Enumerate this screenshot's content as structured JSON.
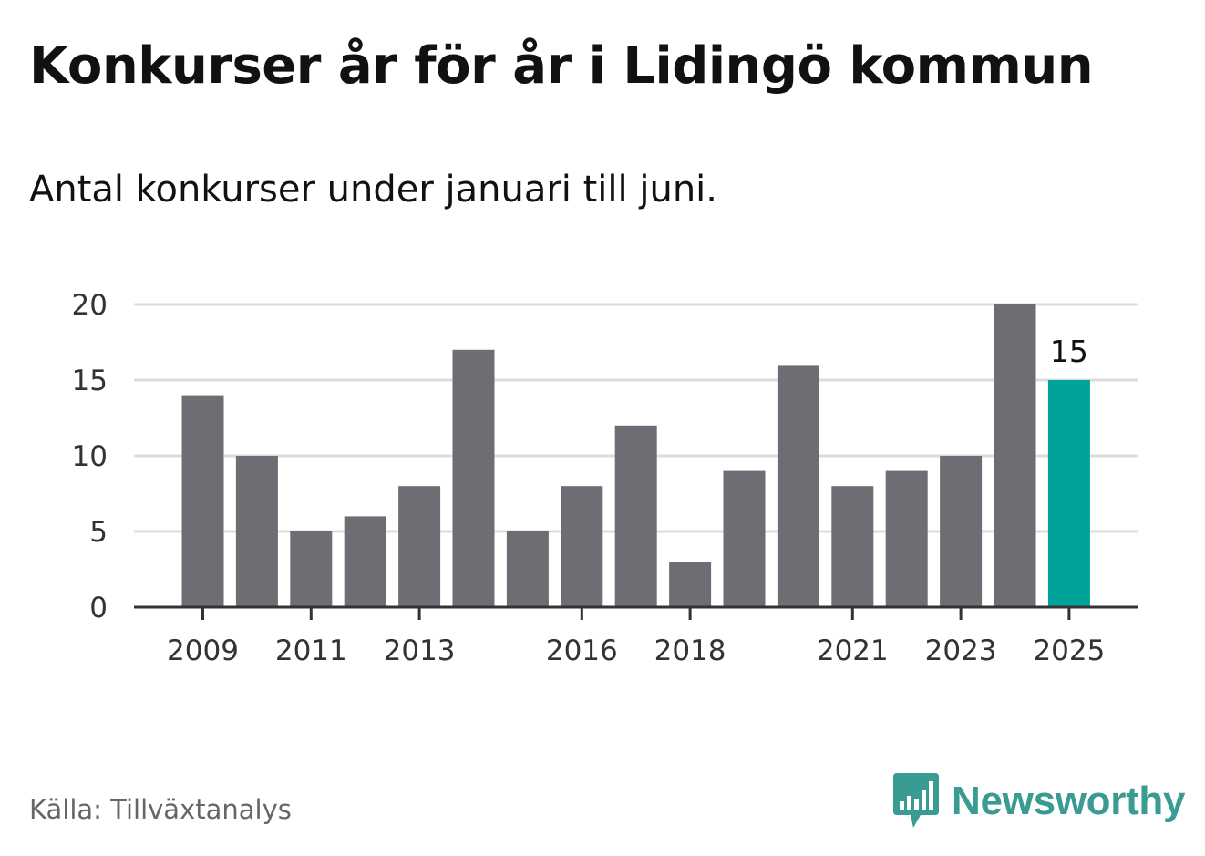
{
  "brand": {
    "name": "Newsworthy",
    "color": "#3a9b93",
    "icon": "bar-chart-speech-bubble-icon"
  },
  "source": "Källa: Tillväxtanalys",
  "chart_data": {
    "type": "bar",
    "title": "Konkurser år för år i Lidingö kommun",
    "subtitle": "Antal konkurser under januari till juni.",
    "xlabel": "",
    "ylabel": "",
    "categories": [
      "2009",
      "2010",
      "2011",
      "2012",
      "2013",
      "2014",
      "2015",
      "2016",
      "2017",
      "2018",
      "2019",
      "2020",
      "2021",
      "2022",
      "2023",
      "2024",
      "2025"
    ],
    "values": [
      14,
      10,
      5,
      6,
      8,
      17,
      5,
      8,
      12,
      3,
      9,
      16,
      8,
      9,
      10,
      20,
      15
    ],
    "x_tick_labels": [
      "2009",
      "2011",
      "2013",
      "2016",
      "2018",
      "2021",
      "2023",
      "2025"
    ],
    "y_ticks": [
      0,
      5,
      10,
      15,
      20
    ],
    "ylim": [
      0,
      20
    ],
    "grid": true,
    "legend": "none",
    "highlight": {
      "category": "2025",
      "label": "15"
    },
    "colors": {
      "bar": "#6e6d73",
      "highlight": "#00a39a",
      "grid": "#dddddd",
      "axis": "#333333"
    }
  }
}
